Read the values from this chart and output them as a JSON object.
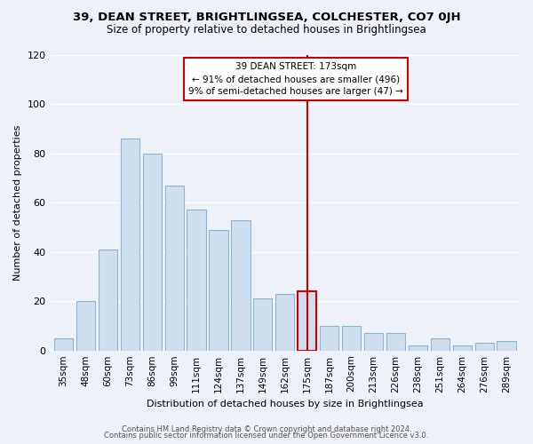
{
  "title": "39, DEAN STREET, BRIGHTLINGSEA, COLCHESTER, CO7 0JH",
  "subtitle": "Size of property relative to detached houses in Brightlingsea",
  "xlabel": "Distribution of detached houses by size in Brightlingsea",
  "ylabel": "Number of detached properties",
  "bar_labels": [
    "35sqm",
    "48sqm",
    "60sqm",
    "73sqm",
    "86sqm",
    "99sqm",
    "111sqm",
    "124sqm",
    "137sqm",
    "149sqm",
    "162sqm",
    "175sqm",
    "187sqm",
    "200sqm",
    "213sqm",
    "226sqm",
    "238sqm",
    "251sqm",
    "264sqm",
    "276sqm",
    "289sqm"
  ],
  "bar_values": [
    5,
    20,
    41,
    86,
    80,
    67,
    57,
    49,
    53,
    21,
    23,
    24,
    10,
    10,
    7,
    7,
    2,
    5,
    2,
    3,
    4
  ],
  "bar_color": "#cfdff0",
  "bar_edgecolor": "#8ab4d4",
  "highlight_index": 11,
  "highlight_color": "#cc0000",
  "annotation_title": "39 DEAN STREET: 173sqm",
  "annotation_line1": "← 91% of detached houses are smaller (496)",
  "annotation_line2": "9% of semi-detached houses are larger (47) →",
  "annotation_box_color": "#ffffff",
  "annotation_box_edgecolor": "#cc0000",
  "ylim": [
    0,
    120
  ],
  "yticks": [
    0,
    20,
    40,
    60,
    80,
    100,
    120
  ],
  "footer_line1": "Contains HM Land Registry data © Crown copyright and database right 2024.",
  "footer_line2": "Contains public sector information licensed under the Open Government Licence v3.0.",
  "background_color": "#eef2f8",
  "grid_color": "#ffffff",
  "title_fontsize": 9.5,
  "subtitle_fontsize": 8.5,
  "ylabel_fontsize": 8,
  "xlabel_fontsize": 8
}
